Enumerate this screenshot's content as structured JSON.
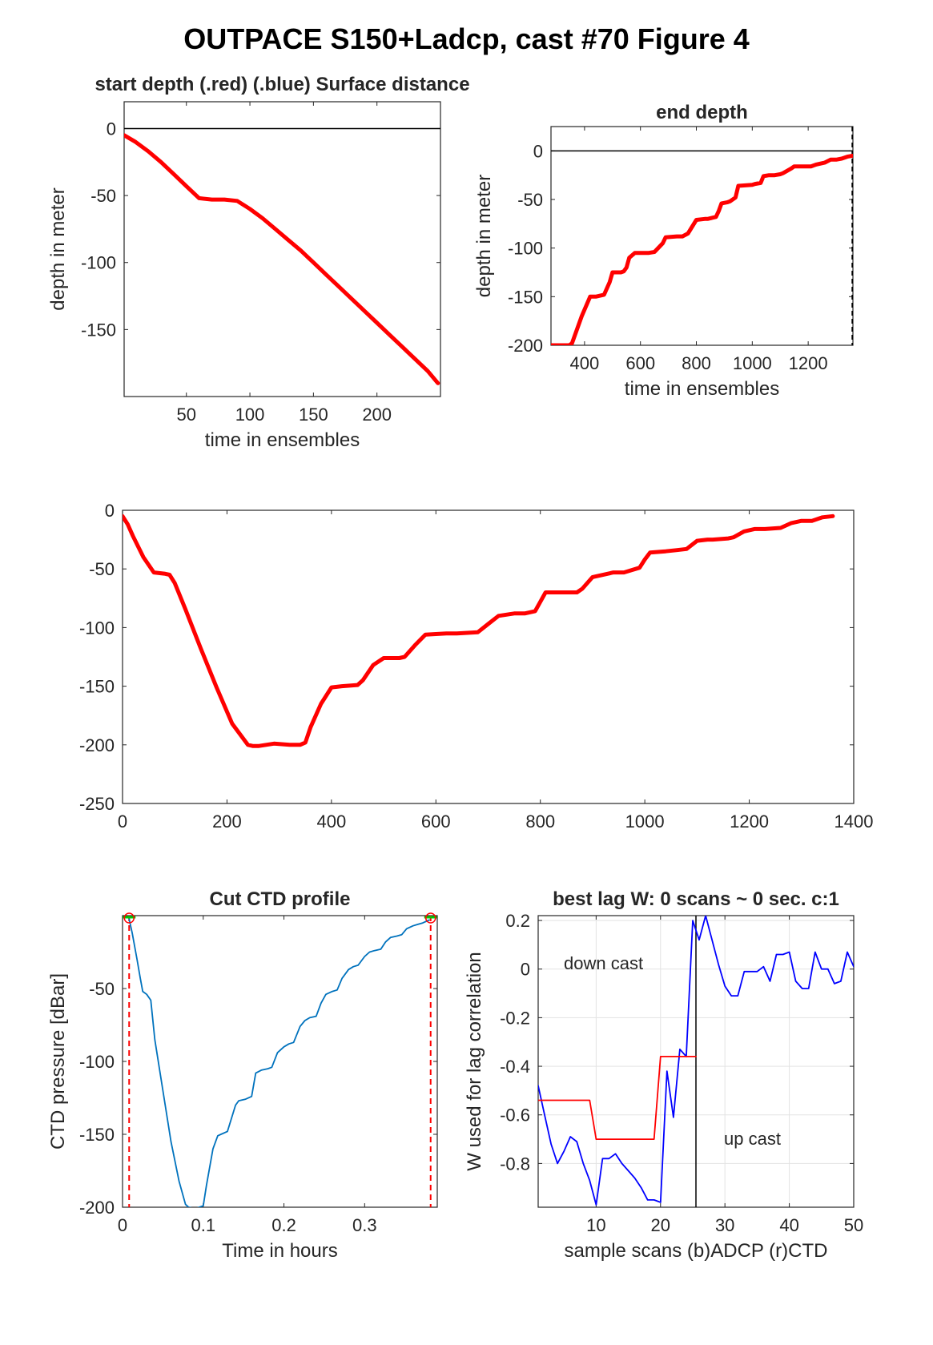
{
  "figure": {
    "title": "OUTPACE S150+Ladcp, cast #70   Figure 4"
  },
  "chart_data": [
    {
      "id": "start-depth",
      "type": "line",
      "title": "start depth (.red) (.blue) Surface distance",
      "xlabel": "time in ensembles",
      "ylabel": "depth in meter",
      "xlim": [
        1,
        250
      ],
      "ylim": [
        -200,
        20
      ],
      "xticks": [
        50,
        100,
        150,
        200
      ],
      "yticks": [
        0,
        -50,
        -100,
        -150
      ],
      "zero_line": true,
      "series": [
        {
          "color": "#ff0000",
          "x": [
            1,
            10,
            20,
            30,
            40,
            50,
            60,
            70,
            80,
            90,
            100,
            110,
            120,
            130,
            140,
            150,
            160,
            170,
            180,
            190,
            200,
            210,
            220,
            230,
            240,
            248
          ],
          "y": [
            -5,
            -10,
            -17,
            -25,
            -34,
            -43,
            -52,
            -53,
            -53,
            -54,
            -60,
            -67,
            -75,
            -83,
            -91,
            -100,
            -109,
            -118,
            -127,
            -136,
            -145,
            -154,
            -163,
            -172,
            -181,
            -190
          ]
        }
      ]
    },
    {
      "id": "end-depth",
      "type": "line",
      "title": "end depth",
      "xlabel": "time in ensembles",
      "ylabel": "depth in meter",
      "xlim": [
        280,
        1360
      ],
      "ylim": [
        -200,
        25
      ],
      "xticks": [
        400,
        600,
        800,
        1000,
        1200
      ],
      "yticks": [
        0,
        -50,
        -100,
        -150,
        -200
      ],
      "zero_line": true,
      "end_marker_x": 1358,
      "series": [
        {
          "color": "#ff0000",
          "x": [
            280,
            345,
            355,
            390,
            420,
            440,
            470,
            490,
            500,
            530,
            540,
            550,
            560,
            580,
            590,
            630,
            650,
            680,
            690,
            730,
            750,
            770,
            800,
            830,
            840,
            870,
            880,
            890,
            910,
            920,
            940,
            950,
            1000,
            1010,
            1030,
            1040,
            1060,
            1080,
            1100,
            1110,
            1140,
            1150,
            1170,
            1210,
            1230,
            1260,
            1280,
            1300,
            1320,
            1340,
            1358
          ],
          "y": [
            -200,
            -200,
            -198,
            -170,
            -150,
            -150,
            -148,
            -135,
            -125,
            -125,
            -124,
            -120,
            -110,
            -105,
            -105,
            -105,
            -104,
            -95,
            -89,
            -88,
            -88,
            -85,
            -71,
            -70,
            -70,
            -68,
            -62,
            -54,
            -53,
            -52,
            -48,
            -36,
            -35,
            -34,
            -33,
            -26,
            -25,
            -25,
            -24,
            -23,
            -18,
            -16,
            -16,
            -16,
            -14,
            -12,
            -9,
            -9,
            -8,
            -6,
            -5
          ]
        }
      ]
    },
    {
      "id": "full-depth",
      "type": "line",
      "title": "",
      "xlabel": "",
      "ylabel": "",
      "xlim": [
        0,
        1400
      ],
      "ylim": [
        -250,
        0
      ],
      "xticks": [
        0,
        200,
        400,
        600,
        800,
        1000,
        1200,
        1400
      ],
      "yticks": [
        0,
        -50,
        -100,
        -150,
        -200,
        -250
      ],
      "series": [
        {
          "color": "#ff0000",
          "x": [
            0,
            10,
            20,
            40,
            60,
            80,
            90,
            100,
            120,
            150,
            180,
            210,
            240,
            250,
            260,
            290,
            320,
            340,
            350,
            360,
            380,
            400,
            420,
            450,
            460,
            480,
            500,
            530,
            540,
            560,
            580,
            620,
            640,
            680,
            700,
            720,
            750,
            770,
            790,
            800,
            810,
            840,
            870,
            880,
            900,
            940,
            960,
            990,
            1000,
            1010,
            1040,
            1060,
            1080,
            1100,
            1120,
            1130,
            1160,
            1170,
            1190,
            1210,
            1230,
            1260,
            1280,
            1300,
            1320,
            1340,
            1360
          ],
          "y": [
            -5,
            -12,
            -22,
            -40,
            -53,
            -54,
            -55,
            -62,
            -84,
            -118,
            -151,
            -182,
            -200,
            -201,
            -201,
            -199,
            -200,
            -200,
            -198,
            -185,
            -165,
            -151,
            -150,
            -149,
            -145,
            -132,
            -126,
            -126,
            -125,
            -115,
            -106,
            -105,
            -105,
            -104,
            -97,
            -90,
            -88,
            -88,
            -86,
            -78,
            -70,
            -70,
            -70,
            -67,
            -57,
            -53,
            -53,
            -49,
            -42,
            -36,
            -35,
            -34,
            -33,
            -26,
            -25,
            -25,
            -24,
            -23,
            -18,
            -16,
            -16,
            -15,
            -11,
            -9,
            -9,
            -6,
            -5
          ]
        }
      ]
    },
    {
      "id": "cut-ctd",
      "type": "line",
      "title": "Cut CTD profile",
      "xlabel": "Time in hours",
      "ylabel": "CTD pressure [dBar]",
      "xlim": [
        0,
        0.39
      ],
      "ylim": [
        -200,
        0
      ],
      "xticks": [
        0,
        0.1,
        0.2,
        0.3
      ],
      "yticks": [
        -50,
        -100,
        -150,
        -200
      ],
      "cut_lines_x": [
        0.0082,
        0.3818
      ],
      "series": [
        {
          "color": "#0072bd",
          "x": [
            0.008,
            0.012,
            0.018,
            0.022,
            0.025,
            0.03,
            0.035,
            0.04,
            0.05,
            0.06,
            0.07,
            0.078,
            0.082,
            0.09,
            0.1,
            0.104,
            0.112,
            0.118,
            0.122,
            0.13,
            0.14,
            0.144,
            0.152,
            0.16,
            0.165,
            0.172,
            0.18,
            0.185,
            0.192,
            0.2,
            0.206,
            0.212,
            0.22,
            0.226,
            0.232,
            0.24,
            0.246,
            0.252,
            0.26,
            0.266,
            0.272,
            0.28,
            0.286,
            0.292,
            0.3,
            0.306,
            0.312,
            0.32,
            0.326,
            0.332,
            0.34,
            0.346,
            0.352,
            0.36,
            0.366,
            0.372,
            0.38
          ],
          "y": [
            -2,
            -12,
            -30,
            -43,
            -52,
            -54,
            -58,
            -85,
            -120,
            -155,
            -182,
            -198,
            -200,
            -201,
            -199,
            -185,
            -160,
            -151,
            -150,
            -148,
            -130,
            -127,
            -126,
            -124,
            -108,
            -106,
            -105,
            -104,
            -94,
            -90,
            -88,
            -87,
            -76,
            -72,
            -70,
            -69,
            -60,
            -54,
            -52,
            -51,
            -43,
            -37,
            -35,
            -34,
            -28,
            -25,
            -24,
            -23,
            -18,
            -15,
            -14,
            -13,
            -9,
            -7,
            -6,
            -5,
            -3
          ]
        }
      ]
    },
    {
      "id": "best-lag",
      "type": "line",
      "title": "best lag W: 0 scans ~ 0 sec.  c:1",
      "xlabel": "sample scans (b)ADCP (r)CTD",
      "ylabel": "W used for lag correlation",
      "xlim": [
        1,
        50
      ],
      "ylim": [
        -0.98,
        0.22
      ],
      "xticks": [
        10,
        20,
        30,
        40,
        50
      ],
      "yticks": [
        0.2,
        0,
        -0.2,
        -0.4,
        -0.6,
        -0.8
      ],
      "grid": true,
      "divider_x": 25.5,
      "annotations": [
        "down cast",
        "up cast"
      ],
      "series": [
        {
          "color": "#0000ff",
          "x": [
            1,
            2,
            3,
            4,
            5,
            6,
            7,
            8,
            9,
            10,
            11,
            12,
            13,
            14,
            15,
            16,
            17,
            18,
            19,
            20,
            21,
            22,
            23,
            24,
            25,
            26,
            27,
            28,
            29,
            30,
            31,
            32,
            33,
            34,
            35,
            36,
            37,
            38,
            39,
            40,
            41,
            42,
            43,
            44,
            45,
            46,
            47,
            48,
            49,
            50
          ],
          "y": [
            -0.48,
            -0.6,
            -0.72,
            -0.8,
            -0.75,
            -0.69,
            -0.71,
            -0.8,
            -0.87,
            -0.97,
            -0.78,
            -0.78,
            -0.76,
            -0.8,
            -0.83,
            -0.86,
            -0.9,
            -0.95,
            -0.95,
            -0.96,
            -0.42,
            -0.61,
            -0.33,
            -0.36,
            0.2,
            0.12,
            0.22,
            0.12,
            0.02,
            -0.07,
            -0.11,
            -0.11,
            -0.01,
            -0.01,
            -0.01,
            0.01,
            -0.05,
            0.06,
            0.06,
            0.07,
            -0.05,
            -0.08,
            -0.08,
            0.07,
            0.0,
            0.0,
            -0.06,
            -0.05,
            0.07,
            0.01
          ]
        },
        {
          "color": "#ff0000",
          "x": [
            1,
            9,
            10,
            19,
            20,
            25.5
          ],
          "y": [
            -0.54,
            -0.54,
            -0.7,
            -0.7,
            -0.36,
            -0.36
          ]
        }
      ]
    }
  ]
}
